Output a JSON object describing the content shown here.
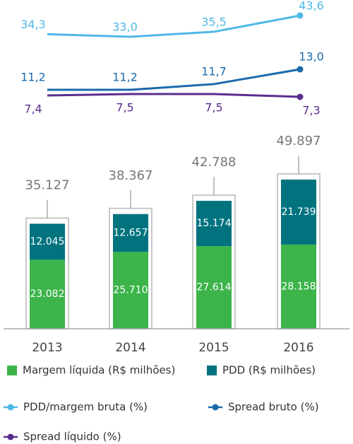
{
  "chart_data": {
    "type": "bar",
    "categories": [
      "2013",
      "2014",
      "2015",
      "2016"
    ],
    "series": [
      {
        "name": "Margem líquida (R$ milhões)",
        "type": "bar",
        "color": "#3cb44a",
        "values": [
          23082,
          25710,
          27614,
          28158
        ],
        "value_labels": [
          "23.082",
          "25.710",
          "27.614",
          "28.158"
        ]
      },
      {
        "name": "PDD (R$ milhões)",
        "type": "bar",
        "color": "#00737f",
        "values": [
          12045,
          12657,
          15174,
          21739
        ],
        "value_labels": [
          "12.045",
          "12.657",
          "15.174",
          "21.739"
        ]
      },
      {
        "name": "PDD/margem bruta (%)",
        "type": "line",
        "color": "#4fb8e6",
        "values": [
          34.3,
          33.0,
          35.5,
          43.6
        ],
        "value_labels": [
          "34,3",
          "33,0",
          "35,5",
          "43,6"
        ]
      },
      {
        "name": "Spread bruto (%)",
        "type": "line",
        "color": "#1a6aad",
        "values": [
          11.2,
          11.2,
          11.7,
          13.0
        ],
        "value_labels": [
          "11,2",
          "11,2",
          "11,7",
          "13,0"
        ]
      },
      {
        "name": "Spread líquido (%)",
        "type": "line",
        "color": "#5b2d8e",
        "values": [
          7.4,
          7.5,
          7.5,
          7.3
        ],
        "value_labels": [
          "7,4",
          "7,5",
          "7,5",
          "7,3"
        ]
      }
    ],
    "totals": {
      "values": [
        35127,
        38367,
        42788,
        49897
      ],
      "value_labels": [
        "35.127",
        "38.367",
        "42.788",
        "49.897"
      ]
    }
  }
}
